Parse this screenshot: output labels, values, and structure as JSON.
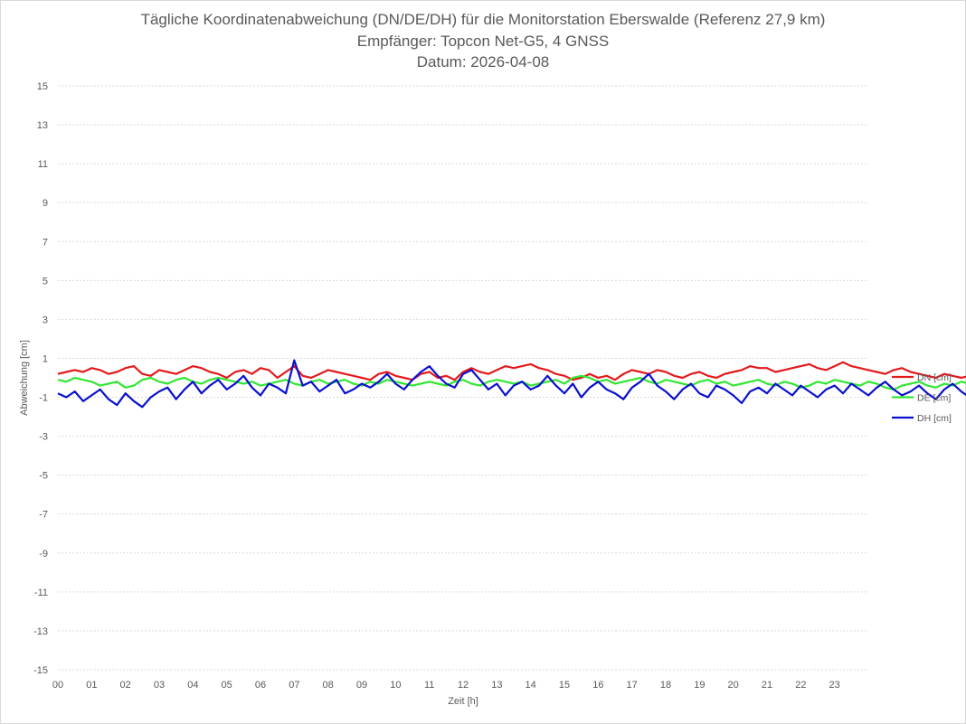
{
  "chart_data": {
    "type": "line",
    "title": "Tägliche Koordinatenabweichung (DN/DE/DH) für die Monitorstation Eberswalde (Referenz 27,9 km)",
    "subtitle_1": "Empfänger: Topcon Net-G5, 4 GNSS",
    "subtitle_2": "Datum: 2026-04-08",
    "xlabel": "Zeit [h]",
    "ylabel": "Abweichung [cm]",
    "xlim": [
      0,
      24
    ],
    "ylim": [
      -15,
      15
    ],
    "x_ticks": [
      "00",
      "01",
      "02",
      "03",
      "04",
      "05",
      "06",
      "07",
      "08",
      "09",
      "10",
      "11",
      "12",
      "13",
      "14",
      "15",
      "16",
      "17",
      "18",
      "19",
      "20",
      "21",
      "22",
      "23"
    ],
    "y_ticks": [
      "15",
      "13",
      "11",
      "9",
      "7",
      "5",
      "3",
      "1",
      "-1",
      "-3",
      "-5",
      "-7",
      "-9",
      "-11",
      "-13",
      "-15"
    ],
    "grid": "horizontal dashed",
    "legend_position": "right",
    "series": [
      {
        "name": "DN [cm]",
        "color": "#e31a1c",
        "x_start": 0,
        "x_step": 0.25,
        "values": [
          0.2,
          0.3,
          0.4,
          0.3,
          0.5,
          0.4,
          0.2,
          0.3,
          0.5,
          0.6,
          0.2,
          0.1,
          0.4,
          0.3,
          0.2,
          0.4,
          0.6,
          0.5,
          0.3,
          0.2,
          0.0,
          0.3,
          0.4,
          0.2,
          0.5,
          0.4,
          0.0,
          0.3,
          0.6,
          0.1,
          0.0,
          0.2,
          0.4,
          0.3,
          0.2,
          0.1,
          0.0,
          -0.1,
          0.2,
          0.3,
          0.1,
          0.0,
          -0.1,
          0.2,
          0.3,
          0.0,
          0.1,
          -0.1,
          0.3,
          0.5,
          0.3,
          0.2,
          0.4,
          0.6,
          0.5,
          0.6,
          0.7,
          0.5,
          0.4,
          0.2,
          0.1,
          -0.1,
          0.0,
          0.2,
          0.0,
          0.1,
          -0.1,
          0.2,
          0.4,
          0.3,
          0.2,
          0.4,
          0.3,
          0.1,
          0.0,
          0.2,
          0.3,
          0.1,
          0.0,
          0.2,
          0.3,
          0.4,
          0.6,
          0.5,
          0.5,
          0.3,
          0.4,
          0.5,
          0.6,
          0.7,
          0.5,
          0.4,
          0.6,
          0.8,
          0.6,
          0.5,
          0.4,
          0.3,
          0.2,
          0.4,
          0.5,
          0.3,
          0.2,
          0.1,
          0.0,
          0.2,
          0.1,
          0.0,
          0.1,
          0.2,
          0.0,
          -0.1,
          0.0,
          0.2,
          0.3,
          0.1,
          0.0,
          -0.1,
          0.1,
          0.2,
          0.3,
          0.2,
          0.1,
          0.2,
          0.3,
          0.4,
          0.5,
          0.3,
          0.2,
          0.4,
          0.5,
          0.6,
          0.5,
          0.4,
          0.6,
          0.7,
          0.5,
          0.4,
          0.3,
          0.5,
          0.6,
          0.4,
          0.3,
          0.2,
          0.1,
          0.3,
          0.4,
          0.2,
          0.1,
          0.0,
          0.2,
          0.3,
          0.2,
          0.1,
          0.3,
          0.4,
          0.6,
          0.8,
          0.5,
          0.3,
          0.2,
          0.1,
          0.3,
          0.4,
          0.2,
          0.5,
          0.7,
          0.9,
          1.1,
          0.8,
          0.6,
          0.4,
          0.3,
          0.5,
          0.4,
          0.3,
          0.2,
          0.2,
          0.3
        ]
      },
      {
        "name": "DE [cm]",
        "color": "#33e633",
        "x_start": 0,
        "x_step": 0.25,
        "values": [
          -0.1,
          -0.2,
          0.0,
          -0.1,
          -0.2,
          -0.4,
          -0.3,
          -0.2,
          -0.5,
          -0.4,
          -0.1,
          0.0,
          -0.2,
          -0.3,
          -0.1,
          0.0,
          -0.2,
          -0.3,
          -0.1,
          0.0,
          -0.1,
          -0.2,
          -0.3,
          -0.2,
          -0.4,
          -0.3,
          -0.2,
          -0.1,
          -0.3,
          -0.4,
          -0.2,
          -0.1,
          -0.3,
          -0.2,
          -0.1,
          -0.3,
          -0.4,
          -0.2,
          -0.3,
          -0.1,
          -0.2,
          -0.3,
          -0.4,
          -0.3,
          -0.2,
          -0.3,
          -0.4,
          -0.2,
          -0.1,
          -0.3,
          -0.4,
          -0.2,
          -0.1,
          -0.2,
          -0.3,
          -0.2,
          -0.4,
          -0.3,
          -0.2,
          -0.1,
          -0.3,
          0.0,
          0.1,
          0.0,
          -0.2,
          -0.1,
          -0.3,
          -0.2,
          -0.1,
          0.0,
          -0.2,
          -0.3,
          -0.1,
          -0.2,
          -0.3,
          -0.4,
          -0.2,
          -0.1,
          -0.3,
          -0.2,
          -0.4,
          -0.3,
          -0.2,
          -0.1,
          -0.3,
          -0.4,
          -0.2,
          -0.3,
          -0.5,
          -0.4,
          -0.2,
          -0.3,
          -0.1,
          -0.2,
          -0.3,
          -0.4,
          -0.2,
          -0.3,
          -0.5,
          -0.6,
          -0.4,
          -0.3,
          -0.2,
          -0.4,
          -0.5,
          -0.3,
          -0.4,
          -0.2,
          -0.3,
          -0.5,
          -0.4,
          -0.3,
          -0.2,
          -0.4,
          -0.5,
          -0.3,
          -0.2,
          -0.4,
          -0.3,
          -0.5,
          -0.4,
          -0.2,
          -0.3,
          -0.4,
          -0.3,
          -0.2,
          -0.1,
          -0.3,
          -0.2,
          -0.4,
          -0.3,
          -0.1,
          -0.2,
          -0.3,
          -0.2,
          -0.4,
          -0.3,
          -0.1,
          0.0,
          -0.2,
          -0.1,
          -0.3,
          -0.2,
          -0.4,
          -0.3,
          -0.2,
          0.0,
          -0.1,
          -0.3,
          -0.2,
          -0.1,
          0.0,
          -0.2,
          -0.3,
          -0.1,
          0.0,
          -0.1,
          -0.3,
          -0.2,
          0.0,
          -0.1,
          -0.2,
          -0.3,
          -0.1,
          0.0,
          0.2,
          0.0,
          -0.1,
          -0.3,
          -0.2,
          -0.1,
          0.0,
          -0.3,
          -0.4,
          -0.2,
          -0.1,
          0.0,
          -0.2,
          -0.3,
          -0.1,
          0.0
        ]
      },
      {
        "name": "DH [cm]",
        "color": "#0a10d0",
        "x_start": 0,
        "x_step": 0.25,
        "values": [
          -0.8,
          -1.0,
          -0.7,
          -1.2,
          -0.9,
          -0.6,
          -1.1,
          -1.4,
          -0.8,
          -1.2,
          -1.5,
          -1.0,
          -0.7,
          -0.5,
          -1.1,
          -0.6,
          -0.2,
          -0.8,
          -0.4,
          -0.1,
          -0.6,
          -0.3,
          0.1,
          -0.5,
          -0.9,
          -0.3,
          -0.5,
          -0.8,
          0.9,
          -0.4,
          -0.2,
          -0.7,
          -0.4,
          -0.1,
          -0.8,
          -0.6,
          -0.3,
          -0.5,
          -0.2,
          0.2,
          -0.3,
          -0.6,
          -0.1,
          0.3,
          0.6,
          0.1,
          -0.3,
          -0.5,
          0.2,
          0.4,
          -0.1,
          -0.6,
          -0.3,
          -0.9,
          -0.4,
          -0.2,
          -0.6,
          -0.4,
          0.1,
          -0.4,
          -0.8,
          -0.3,
          -1.0,
          -0.5,
          -0.2,
          -0.6,
          -0.8,
          -1.1,
          -0.5,
          -0.2,
          0.2,
          -0.4,
          -0.7,
          -1.1,
          -0.6,
          -0.3,
          -0.8,
          -1.0,
          -0.4,
          -0.6,
          -0.9,
          -1.3,
          -0.7,
          -0.5,
          -0.8,
          -0.3,
          -0.6,
          -0.9,
          -0.4,
          -0.7,
          -1.0,
          -0.6,
          -0.4,
          -0.8,
          -0.3,
          -0.6,
          -0.9,
          -0.5,
          -0.2,
          -0.6,
          -0.9,
          -0.7,
          -0.4,
          -0.8,
          -1.1,
          -0.6,
          -0.3,
          -0.7,
          -1.0,
          -0.5,
          -0.8,
          -1.2,
          -0.7,
          -0.4,
          -0.9,
          -1.1,
          -0.6,
          -0.3,
          -0.7,
          -0.5,
          -0.9,
          -1.3,
          -0.8,
          -0.6,
          -1.0,
          -0.7,
          -0.4,
          -0.8,
          -1.1,
          -0.6,
          -0.3,
          -0.7,
          -0.9,
          -0.5,
          -0.8,
          -0.4,
          -0.6,
          -0.9,
          -0.5,
          -0.7,
          -0.4,
          -0.2,
          -0.6,
          -0.3,
          -0.7,
          -0.4,
          -0.8,
          -0.5,
          -0.3,
          -0.6,
          -0.8,
          -1.0,
          -1.5,
          -0.9,
          -0.7,
          -0.4,
          -1.1,
          -1.3,
          -0.6,
          -0.9,
          -0.5,
          -0.8,
          -1.1,
          -0.6,
          -0.3,
          -0.7,
          -0.4,
          -0.9,
          -0.5,
          -0.3,
          -0.8,
          -0.6,
          -0.2,
          -0.9,
          -1.2,
          -0.6,
          -0.4,
          -0.9,
          -0.5,
          -1.3
        ]
      }
    ]
  }
}
